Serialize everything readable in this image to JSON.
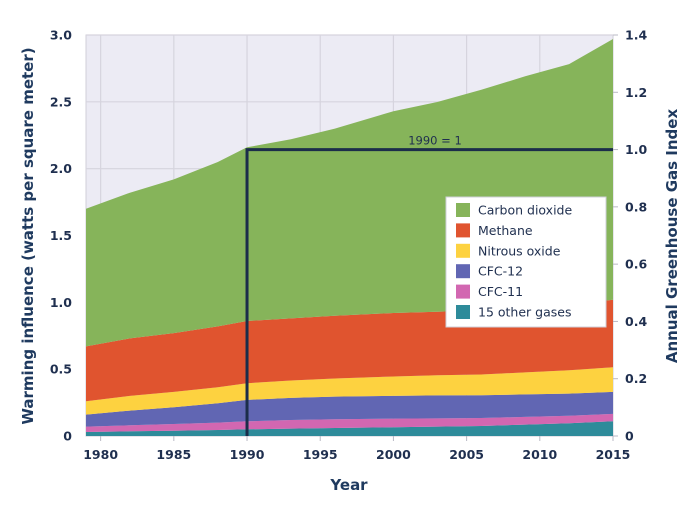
{
  "chart_data": {
    "type": "area",
    "stacked": true,
    "title": "",
    "xlabel": "Year",
    "ylabel": "Warming influence (watts per square meter)",
    "y2label": "Annual Greenhouse Gas Index",
    "xlim": [
      1979,
      2015
    ],
    "ylim": [
      0,
      3.0
    ],
    "y2lim": [
      0,
      1.4
    ],
    "x_ticks": [
      "1980",
      "1985",
      "1990",
      "1995",
      "2000",
      "2005",
      "2010",
      "2015"
    ],
    "y_ticks": [
      "0",
      "0.5",
      "1.0",
      "1.5",
      "2.0",
      "2.5",
      "3.0"
    ],
    "y2_ticks": [
      "0",
      "0.2",
      "0.4",
      "0.6",
      "0.8",
      "1.0",
      "1.2",
      "1.4"
    ],
    "grid": true,
    "legend_position": "center-right",
    "annotation": {
      "text": "1990 = 1",
      "reference_year": 1990,
      "index_value": 1.0
    },
    "x": [
      1979,
      1982,
      1985,
      1988,
      1990,
      1993,
      1996,
      2000,
      2003,
      2006,
      2009,
      2012,
      2015
    ],
    "series": [
      {
        "name": "15 other gases",
        "color": "#2e8b9a",
        "values": [
          0.03,
          0.035,
          0.04,
          0.045,
          0.05,
          0.055,
          0.06,
          0.065,
          0.07,
          0.075,
          0.085,
          0.095,
          0.11
        ]
      },
      {
        "name": "CFC-11",
        "color": "#d267b1",
        "values": [
          0.04,
          0.045,
          0.05,
          0.055,
          0.06,
          0.065,
          0.065,
          0.065,
          0.062,
          0.06,
          0.058,
          0.056,
          0.055
        ]
      },
      {
        "name": "CFC-12",
        "color": "#6166b3",
        "values": [
          0.09,
          0.11,
          0.125,
          0.145,
          0.16,
          0.165,
          0.17,
          0.17,
          0.172,
          0.17,
          0.168,
          0.166,
          0.165
        ]
      },
      {
        "name": "Nitrous oxide",
        "color": "#fdd240",
        "values": [
          0.1,
          0.11,
          0.115,
          0.12,
          0.125,
          0.13,
          0.135,
          0.145,
          0.15,
          0.155,
          0.165,
          0.175,
          0.185
        ]
      },
      {
        "name": "Methane",
        "color": "#e0542f",
        "values": [
          0.41,
          0.43,
          0.44,
          0.455,
          0.465,
          0.465,
          0.47,
          0.475,
          0.475,
          0.48,
          0.485,
          0.49,
          0.505
        ]
      },
      {
        "name": "Carbon dioxide",
        "color": "#86b45a",
        "values": [
          1.03,
          1.09,
          1.15,
          1.23,
          1.3,
          1.34,
          1.4,
          1.51,
          1.57,
          1.65,
          1.73,
          1.8,
          1.95
        ]
      }
    ]
  },
  "legend": {
    "items": [
      "Carbon dioxide",
      "Methane",
      "Nitrous oxide",
      "CFC-12",
      "CFC-11",
      "15 other gases"
    ]
  },
  "colors": {
    "plot_background": "#ecebf4",
    "grid": "#d6d4de",
    "reference_line": "#1b2d4a",
    "text": "#1f2f4f"
  }
}
